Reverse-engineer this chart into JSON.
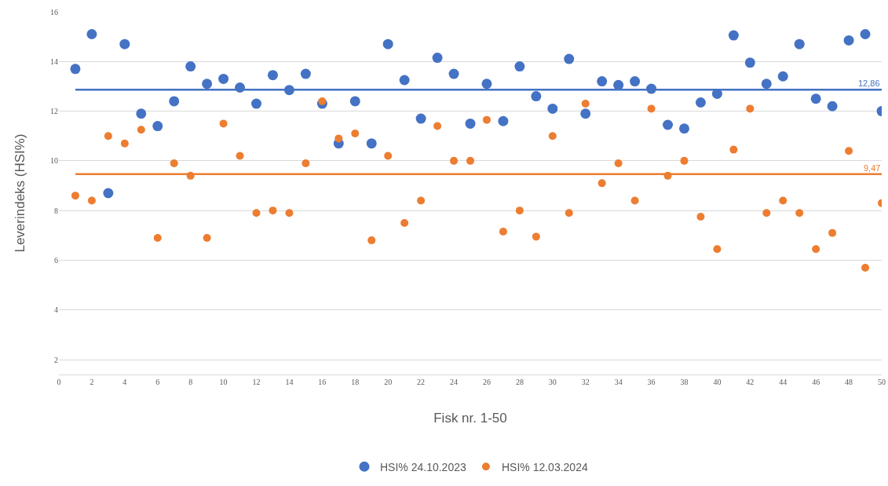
{
  "chart_data": {
    "type": "scatter",
    "xlabel": "Fisk nr. 1-50",
    "ylabel": "Leverindeks (HSI%)",
    "x": [
      1,
      2,
      3,
      4,
      5,
      6,
      7,
      8,
      9,
      10,
      11,
      12,
      13,
      14,
      15,
      16,
      17,
      18,
      19,
      20,
      21,
      22,
      23,
      24,
      25,
      26,
      27,
      28,
      29,
      30,
      31,
      32,
      33,
      34,
      35,
      36,
      37,
      38,
      39,
      40,
      41,
      42,
      43,
      44,
      45,
      46,
      47,
      48,
      49,
      50
    ],
    "series": [
      {
        "name": "HSI% 24.10.2023",
        "color": "#4472c4",
        "values": [
          13.7,
          15.1,
          8.7,
          14.7,
          11.9,
          11.4,
          12.4,
          13.8,
          13.1,
          13.3,
          12.95,
          12.3,
          13.45,
          12.85,
          13.5,
          12.3,
          10.7,
          12.4,
          10.7,
          14.7,
          13.25,
          11.7,
          14.15,
          13.5,
          11.5,
          13.1,
          11.6,
          13.8,
          12.6,
          12.1,
          14.1,
          11.9,
          13.2,
          13.05,
          13.2,
          12.9,
          11.45,
          11.3,
          12.35,
          12.7,
          15.05,
          13.95,
          13.1,
          13.4,
          14.7,
          12.5,
          12.2,
          14.85,
          15.1,
          12.0
        ]
      },
      {
        "name": "HSI% 12.03.2024",
        "color": "#ed7d31",
        "values": [
          8.6,
          8.4,
          11.0,
          10.7,
          11.25,
          6.9,
          9.9,
          9.4,
          6.9,
          11.5,
          10.2,
          7.9,
          8.0,
          7.9,
          9.9,
          12.4,
          10.9,
          11.1,
          6.8,
          10.2,
          7.5,
          8.4,
          11.4,
          10.0,
          10.0,
          11.65,
          7.15,
          8.0,
          6.95,
          11.0,
          7.9,
          12.3,
          9.1,
          9.9,
          8.4,
          12.1,
          9.4,
          10.0,
          7.75,
          6.45,
          10.45,
          12.1,
          7.9,
          8.4,
          7.9,
          6.45,
          7.1,
          10.4,
          5.7,
          8.3
        ]
      }
    ],
    "ref_lines": [
      {
        "axis": "y",
        "value": 12.86,
        "label": "12,86",
        "color": "#4472c4"
      },
      {
        "axis": "y",
        "value": 9.47,
        "label": "9,47",
        "color": "#ed7d31"
      }
    ],
    "xlim": [
      0,
      50
    ],
    "xticks": [
      0,
      2,
      4,
      6,
      8,
      10,
      12,
      14,
      16,
      18,
      20,
      22,
      24,
      26,
      28,
      30,
      32,
      34,
      36,
      38,
      40,
      42,
      44,
      46,
      48,
      50
    ],
    "ylim": [
      1.4,
      16
    ],
    "yticks": [
      2,
      4,
      6,
      8,
      10,
      12,
      14,
      16
    ],
    "grid": "y",
    "legend": "bottom",
    "marker": "circle"
  }
}
